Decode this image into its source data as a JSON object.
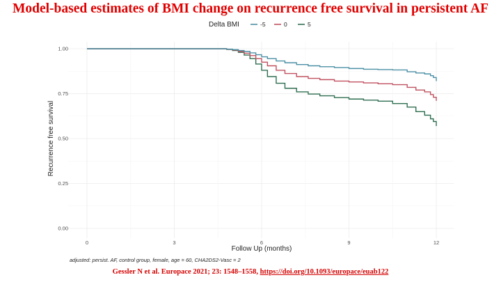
{
  "slide": {
    "title": "Model-based estimates of BMI change on recurrence free survival in persistent AF",
    "citation_text": "Gessler N et al. Europace 2021; 23: 1548–1558, ",
    "citation_link": "https://doi.org/10.1093/europace/euab122"
  },
  "chart_data": {
    "type": "line",
    "step": true,
    "title": "",
    "xlabel": "Follow Up (months)",
    "ylabel": "Recurrence free survival",
    "xlim": [
      0,
      12
    ],
    "ylim": [
      0,
      1
    ],
    "xticks": [
      0,
      3,
      6,
      9,
      12
    ],
    "xtick_labels": [
      "0",
      "3",
      "6",
      "9",
      "12"
    ],
    "yticks": [
      0,
      0.25,
      0.5,
      0.75,
      1
    ],
    "ytick_labels": [
      "0.00",
      "0.25",
      "0.50",
      "0.75",
      "1.00"
    ],
    "grid": true,
    "legend_title": "Delta BMI",
    "legend_position": "top",
    "caption": "adjusted: persist. AF, control group, female, age = 60, CHA2DS2-Vasc = 2",
    "colors": {
      "-5": "#4a8fa5",
      "0": "#c0505f",
      "5": "#2e6e50",
      "text_red": "#e00000"
    },
    "series": [
      {
        "name": "-5",
        "x": [
          0,
          4.8,
          5.0,
          5.2,
          5.4,
          5.6,
          5.8,
          6.0,
          6.2,
          6.5,
          6.8,
          7.2,
          7.6,
          8.0,
          8.5,
          9.0,
          9.5,
          10.0,
          10.5,
          11.0,
          11.3,
          11.6,
          11.8,
          11.9,
          12.0
        ],
        "y": [
          1.0,
          0.998,
          0.995,
          0.99,
          0.985,
          0.977,
          0.967,
          0.955,
          0.945,
          0.932,
          0.922,
          0.912,
          0.905,
          0.9,
          0.895,
          0.89,
          0.886,
          0.884,
          0.882,
          0.872,
          0.865,
          0.86,
          0.85,
          0.84,
          0.82
        ]
      },
      {
        "name": "0",
        "x": [
          0,
          4.8,
          5.0,
          5.2,
          5.4,
          5.6,
          5.8,
          6.0,
          6.2,
          6.5,
          6.8,
          7.2,
          7.6,
          8.0,
          8.5,
          9.0,
          9.5,
          10.0,
          10.5,
          11.0,
          11.3,
          11.6,
          11.8,
          11.9,
          12.0
        ],
        "y": [
          1.0,
          0.997,
          0.993,
          0.985,
          0.975,
          0.962,
          0.945,
          0.925,
          0.905,
          0.88,
          0.862,
          0.845,
          0.835,
          0.828,
          0.82,
          0.815,
          0.81,
          0.805,
          0.8,
          0.785,
          0.77,
          0.76,
          0.745,
          0.73,
          0.71
        ]
      },
      {
        "name": "5",
        "x": [
          0,
          4.8,
          5.0,
          5.2,
          5.4,
          5.6,
          5.8,
          6.0,
          6.2,
          6.5,
          6.8,
          7.2,
          7.6,
          8.0,
          8.5,
          9.0,
          9.5,
          10.0,
          10.5,
          11.0,
          11.3,
          11.6,
          11.8,
          11.9,
          12.0
        ],
        "y": [
          1.0,
          0.996,
          0.99,
          0.98,
          0.965,
          0.945,
          0.915,
          0.88,
          0.845,
          0.808,
          0.78,
          0.76,
          0.748,
          0.738,
          0.728,
          0.72,
          0.714,
          0.708,
          0.695,
          0.675,
          0.65,
          0.63,
          0.61,
          0.595,
          0.57
        ]
      }
    ]
  }
}
